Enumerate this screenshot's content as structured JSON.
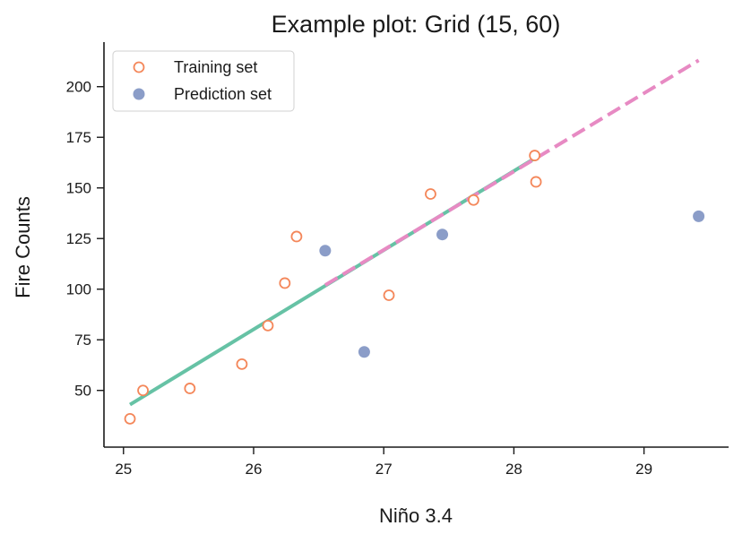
{
  "chart_data": {
    "type": "scatter",
    "title": "Example plot: Grid (15, 60)",
    "xlabel": "Niño 3.4",
    "ylabel": "Fire Counts",
    "xlim": [
      24.85,
      29.65
    ],
    "ylim": [
      22,
      222
    ],
    "xticks": [
      25,
      26,
      27,
      28,
      29
    ],
    "yticks": [
      50,
      75,
      100,
      125,
      150,
      175,
      200
    ],
    "grid": false,
    "legend_position": "top-left",
    "colors": {
      "training": "#f4875a",
      "prediction": "#8b9dc8",
      "fit_line": "#66c2a5",
      "extrapolation_line": "#e78ac3",
      "axis": "#1a1a1a"
    },
    "series": [
      {
        "name": "Training set",
        "marker": "open-circle",
        "points": [
          {
            "x": 25.05,
            "y": 36
          },
          {
            "x": 25.15,
            "y": 50
          },
          {
            "x": 25.51,
            "y": 51
          },
          {
            "x": 25.91,
            "y": 63
          },
          {
            "x": 26.11,
            "y": 82
          },
          {
            "x": 26.24,
            "y": 103
          },
          {
            "x": 26.33,
            "y": 126
          },
          {
            "x": 27.04,
            "y": 97
          },
          {
            "x": 27.36,
            "y": 147
          },
          {
            "x": 27.69,
            "y": 144
          },
          {
            "x": 28.16,
            "y": 166
          },
          {
            "x": 28.17,
            "y": 153
          }
        ]
      },
      {
        "name": "Prediction set",
        "marker": "filled-circle",
        "points": [
          {
            "x": 26.55,
            "y": 119
          },
          {
            "x": 26.85,
            "y": 69
          },
          {
            "x": 27.45,
            "y": 127
          },
          {
            "x": 29.42,
            "y": 136
          }
        ]
      }
    ],
    "lines": [
      {
        "style": "solid",
        "from": {
          "x": 25.05,
          "y": 43
        },
        "to": {
          "x": 28.17,
          "y": 165
        }
      },
      {
        "style": "dashed",
        "from": {
          "x": 26.55,
          "y": 102
        },
        "to": {
          "x": 29.42,
          "y": 213
        }
      }
    ]
  }
}
